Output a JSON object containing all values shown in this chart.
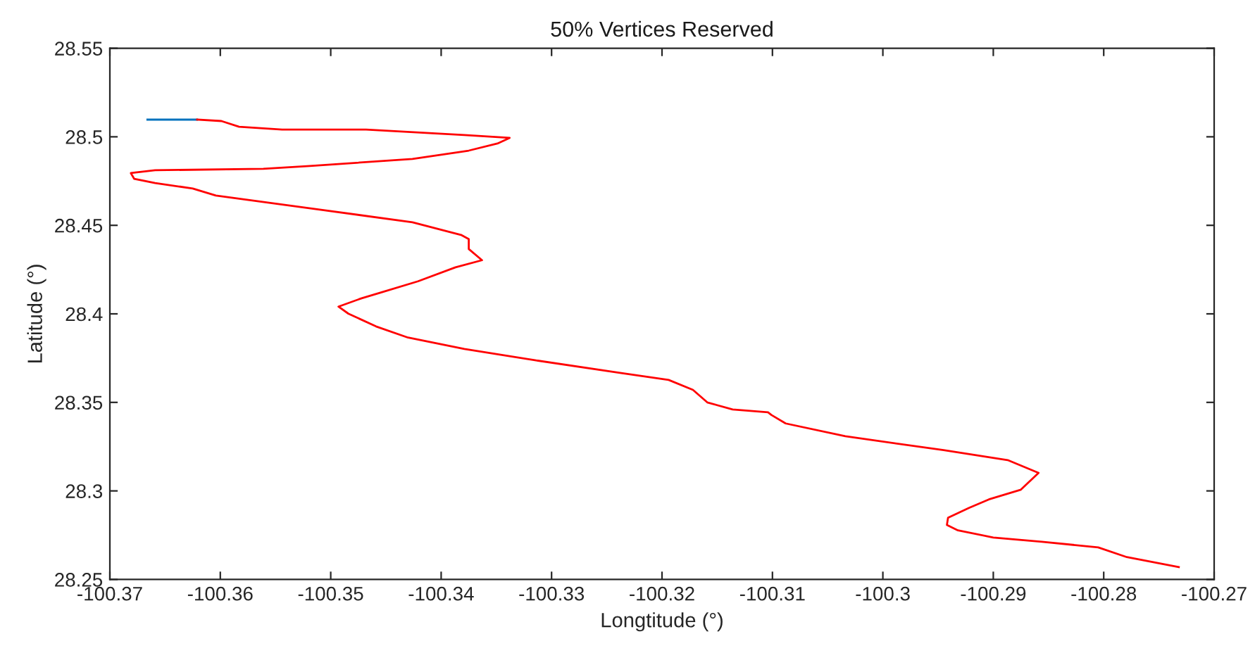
{
  "chart_data": {
    "type": "line",
    "title": "50% Vertices Reserved",
    "xlabel": "Longtitude (°)",
    "ylabel": "Latitude (°)",
    "xlim": [
      -100.37,
      -100.27
    ],
    "ylim": [
      28.25,
      28.55
    ],
    "xticks": [
      -100.37,
      -100.36,
      -100.35,
      -100.34,
      -100.33,
      -100.32,
      -100.31,
      -100.3,
      -100.29,
      -100.28,
      -100.27
    ],
    "yticks": [
      28.25,
      28.3,
      28.35,
      28.4,
      28.45,
      28.5,
      28.55
    ],
    "grid": false,
    "marker": "none",
    "line_style": "solid",
    "series": [
      {
        "color": "#0072bd",
        "x": [
          -100.3666,
          -100.3621
        ],
        "values": [
          28.5097,
          28.5097
        ]
      },
      {
        "color": "#ff0000",
        "x": [
          -100.3621,
          -100.3599,
          -100.3583,
          -100.3544,
          -100.3468,
          -100.3379,
          -100.3338,
          -100.3349,
          -100.3375,
          -100.3426,
          -100.3519,
          -100.3561,
          -100.3659,
          -100.3681,
          -100.3678,
          -100.3659,
          -100.3625,
          -100.3604,
          -100.351,
          -100.3426,
          -100.3382,
          -100.3375,
          -100.3375,
          -100.3363,
          -100.3387,
          -100.3421,
          -100.3455,
          -100.3472,
          -100.3493,
          -100.3484,
          -100.3459,
          -100.343,
          -100.3379,
          -100.3315,
          -100.3238,
          -100.3194,
          -100.3172,
          -100.3159,
          -100.3136,
          -100.3104,
          -100.3101,
          -100.3088,
          -100.3034,
          -100.2945,
          -100.2887,
          -100.2859,
          -100.2875,
          -100.2904,
          -100.2922,
          -100.2941,
          -100.2942,
          -100.2932,
          -100.29,
          -100.2856,
          -100.2805,
          -100.2779,
          -100.2732
        ],
        "values": [
          28.5097,
          28.5089,
          28.5057,
          28.5041,
          28.5041,
          28.501,
          28.4994,
          28.4962,
          28.4922,
          28.4875,
          28.4835,
          28.4819,
          28.4811,
          28.4795,
          28.4763,
          28.4739,
          28.4708,
          28.4668,
          28.4589,
          28.4517,
          28.4446,
          28.4422,
          28.4366,
          28.4303,
          28.4263,
          28.4184,
          28.412,
          28.4088,
          28.4041,
          28.4001,
          28.3929,
          28.3866,
          28.3802,
          28.3738,
          28.3667,
          28.3627,
          28.3571,
          28.35,
          28.346,
          28.3444,
          28.3429,
          28.3381,
          28.3309,
          28.323,
          28.3174,
          28.3102,
          28.3007,
          28.2952,
          28.2904,
          28.2848,
          28.2808,
          28.2777,
          28.2737,
          28.2713,
          28.2681,
          28.2626,
          28.257
        ]
      }
    ]
  }
}
